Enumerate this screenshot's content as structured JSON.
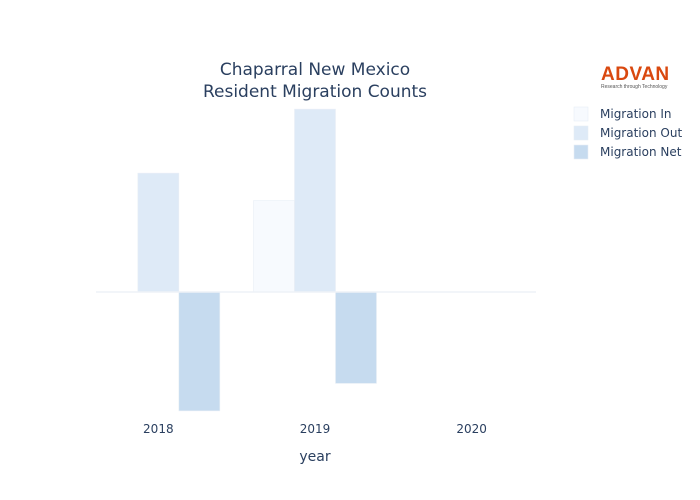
{
  "chart_data": {
    "type": "bar",
    "title_lines": [
      "Chaparral New Mexico",
      "Resident Migration Counts"
    ],
    "xlabel": "year",
    "ylabel": "",
    "categories": [
      "2018",
      "2019",
      "2020"
    ],
    "series": [
      {
        "name": "Migration In",
        "values": [
          0,
          50,
          0
        ],
        "color": "#f7fafe"
      },
      {
        "name": "Migration Out",
        "values": [
          65,
          100,
          0
        ],
        "color": "#deeaf7"
      },
      {
        "name": "Migration Net",
        "values": [
          -65,
          -50,
          0
        ],
        "color": "#c6dbef"
      }
    ],
    "ylim": [
      -70,
      105
    ],
    "grid": false,
    "yticks_visible": false,
    "legend_position": "top-right"
  },
  "logo": {
    "word": "ADVAN",
    "tagline": "Research through Technology"
  }
}
